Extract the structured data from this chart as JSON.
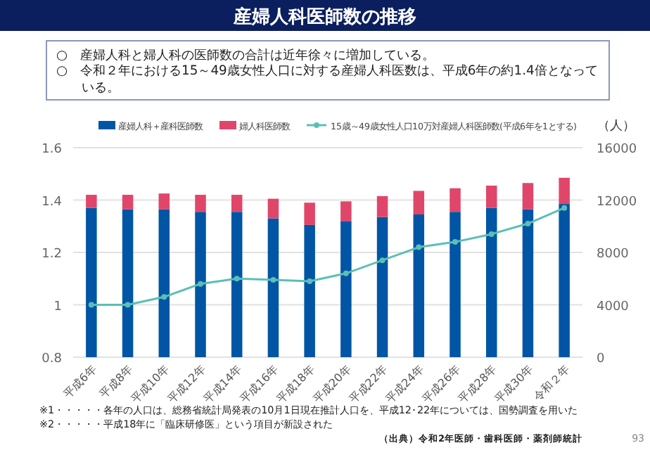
{
  "chart_data": {
    "type": "bar",
    "title": "産婦人科医師数の推移",
    "annotations": [
      "○　産婦人科と婦人科の医師数の合計は近年徐々に増加している。",
      "○　令和２年における15～49歳女性人口に対する産婦人科医数は、平成6年の約1.4倍となっている。",
      "※1・・・・・各年の人口は、総務省統計局発表の10月1日現在推計人口を、平成12･22年については、国勢調査を用いた",
      "※2・・・・・平成18年に「臨床研修医」という項目が新設された",
      "（出典）令和2年医師・歯科医師・薬剤師統計",
      "93"
    ],
    "y2label": "（人）",
    "categories": [
      "平成6年",
      "平成8年",
      "平成10年",
      "平成12年",
      "平成14年",
      "平成16年",
      "平成18年",
      "平成20年",
      "平成22年",
      "平成24年",
      "平成26年",
      "平成28年",
      "平成30年",
      "令和２年"
    ],
    "stacked": true,
    "legend": "top",
    "grid": "y",
    "marker": "circle",
    "ylim": [
      0.8,
      1.6
    ],
    "yticks": [
      0.8,
      1,
      1.2,
      1.4,
      1.6
    ],
    "y2lim": [
      0,
      16000
    ],
    "y2ticks": [
      0,
      4000,
      8000,
      12000,
      16000
    ],
    "series": [
      {
        "name": "産婦人科＋産科医師数",
        "axis": "y2",
        "color": "#0055a5",
        "values": [
          11400,
          11300,
          11300,
          11100,
          11100,
          10600,
          10100,
          10400,
          10700,
          10900,
          11100,
          11400,
          11300,
          11700
        ]
      },
      {
        "name": "婦人科医師数",
        "axis": "y2",
        "color": "#e0466a",
        "values": [
          1000,
          1100,
          1200,
          1300,
          1300,
          1500,
          1700,
          1500,
          1600,
          1800,
          1800,
          1700,
          2000,
          2000
        ]
      },
      {
        "name": "15歳～49歳女性人口10万対産婦人科医師数(平成6年を1とする)",
        "type": "line",
        "axis": "y",
        "color": "#5bbfb5",
        "values": [
          1.0,
          1.0,
          1.03,
          1.08,
          1.1,
          1.095,
          1.09,
          1.12,
          1.17,
          1.22,
          1.24,
          1.27,
          1.31,
          1.37
        ]
      }
    ]
  }
}
